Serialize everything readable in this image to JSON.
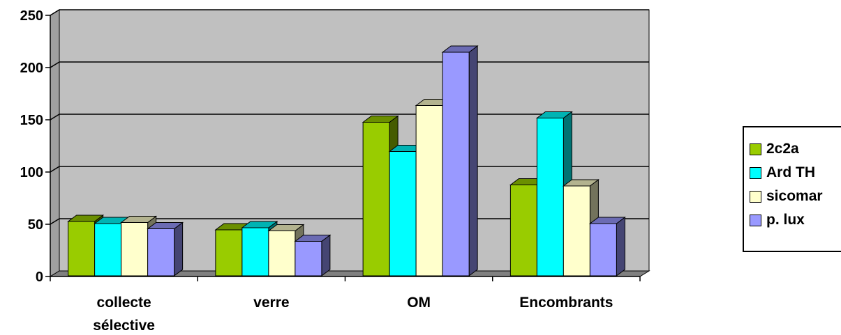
{
  "chart_data": {
    "type": "bar",
    "categories": [
      "collecte sélective",
      "verre",
      "OM",
      "Encombrants"
    ],
    "category_lines": [
      [
        "collecte",
        "sélective"
      ],
      [
        "verre"
      ],
      [
        "OM"
      ],
      [
        "Encombrants"
      ]
    ],
    "series": [
      {
        "name": "2c2a",
        "color": "#99cc00",
        "values": [
          54,
          46,
          149,
          89
        ]
      },
      {
        "name": "Ard TH",
        "color": "#00ffff",
        "values": [
          52,
          48,
          121,
          153
        ]
      },
      {
        "name": "sicomar",
        "color": "#ffffcc",
        "values": [
          53,
          45,
          165,
          88
        ]
      },
      {
        "name": "p. lux",
        "color": "#9999ff",
        "values": [
          47,
          35,
          216,
          52
        ]
      }
    ],
    "ylim": [
      0,
      250
    ],
    "yticks": [
      "0",
      "50",
      "100",
      "150",
      "200",
      "250"
    ],
    "grid": true,
    "legend_position": "right",
    "plot_background": "#c0c0c0",
    "three_d": true
  }
}
